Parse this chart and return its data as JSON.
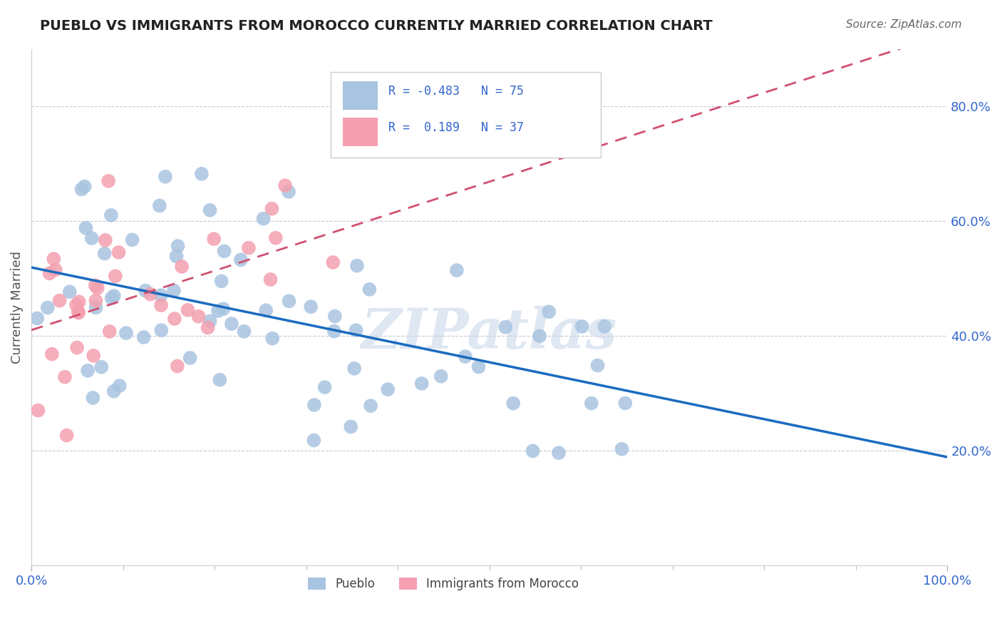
{
  "title": "PUEBLO VS IMMIGRANTS FROM MOROCCO CURRENTLY MARRIED CORRELATION CHART",
  "source": "Source: ZipAtlas.com",
  "ylabel": "Currently Married",
  "xlim": [
    0.0,
    1.0
  ],
  "ylim": [
    0.0,
    0.9
  ],
  "pueblo_R": -0.483,
  "pueblo_N": 75,
  "morocco_R": 0.189,
  "morocco_N": 37,
  "blue_color": "#a8c4e0",
  "pink_color": "#f4a0b0",
  "blue_line_color": "#1a6bbf",
  "pink_line_color": "#d05070",
  "background_color": "#ffffff",
  "grid_color": "#c8c8d8",
  "watermark": "ZIPatlas",
  "watermark_color": "#c8d8ea",
  "tick_label_color": "#3366cc",
  "title_color": "#222222",
  "source_color": "#666666",
  "ylabel_color": "#555555",
  "legend_label_color": "#3366cc",
  "bottom_legend_label_color": "#444444"
}
